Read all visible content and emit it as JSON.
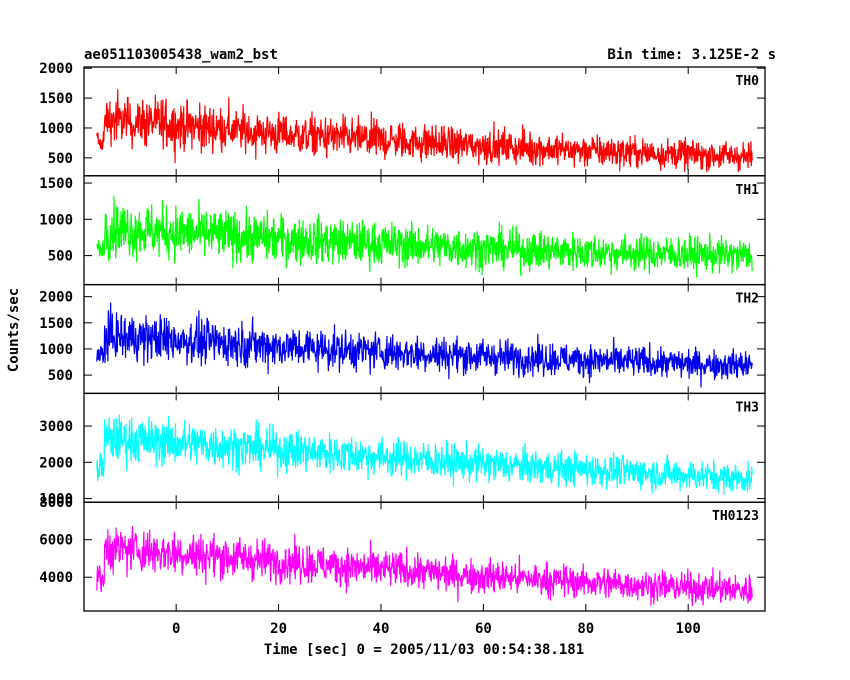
{
  "chart_data": {
    "type": "line",
    "title": "ae051103005438_wam2_bst",
    "subtitle": "Bin time: 3.125E-2 s",
    "xlabel": "Time [sec] 0 = 2005/11/03 00:54:38.181",
    "ylabel": "Counts/sec",
    "xlim": [
      -18,
      115
    ],
    "x_ticks": [
      0,
      20,
      40,
      60,
      80,
      100
    ],
    "x_tick_labels": [
      "0",
      "20",
      "40",
      "60",
      "80",
      "100"
    ],
    "x_data_range": [
      -15.5,
      112.5
    ],
    "panels": [
      {
        "name": "TH0",
        "color": "#ff0000",
        "ylim": [
          200,
          2020
        ],
        "y_ticks": [
          500,
          1000,
          1500,
          2000
        ],
        "y_tick_labels": [
          "500",
          "1000",
          "1500",
          "2000"
        ],
        "trend": [
          [
            -15,
            1150
          ],
          [
            0,
            1050
          ],
          [
            20,
            900
          ],
          [
            40,
            800
          ],
          [
            60,
            700
          ],
          [
            80,
            620
          ],
          [
            100,
            560
          ],
          [
            112,
            520
          ]
        ],
        "spread": [
          [
            -15,
            400
          ],
          [
            0,
            380
          ],
          [
            20,
            330
          ],
          [
            40,
            300
          ],
          [
            60,
            270
          ],
          [
            80,
            250
          ],
          [
            100,
            230
          ],
          [
            112,
            220
          ]
        ]
      },
      {
        "name": "TH1",
        "color": "#00ff00",
        "ylim": [
          100,
          1600
        ],
        "y_ticks": [
          500,
          1000,
          1500
        ],
        "y_tick_labels": [
          "500",
          "1000",
          "1500"
        ],
        "trend": [
          [
            -15,
            880
          ],
          [
            0,
            820
          ],
          [
            20,
            730
          ],
          [
            40,
            660
          ],
          [
            60,
            600
          ],
          [
            80,
            550
          ],
          [
            100,
            520
          ],
          [
            112,
            500
          ]
        ],
        "spread": [
          [
            -15,
            360
          ],
          [
            0,
            340
          ],
          [
            20,
            310
          ],
          [
            40,
            280
          ],
          [
            60,
            260
          ],
          [
            80,
            240
          ],
          [
            100,
            230
          ],
          [
            112,
            220
          ]
        ]
      },
      {
        "name": "TH2",
        "color": "#0000ee",
        "ylim": [
          150,
          2230
        ],
        "y_ticks": [
          500,
          1000,
          1500,
          2000
        ],
        "y_tick_labels": [
          "500",
          "1000",
          "1500",
          "2000"
        ],
        "trend": [
          [
            -15,
            1250
          ],
          [
            0,
            1180
          ],
          [
            20,
            1050
          ],
          [
            40,
            950
          ],
          [
            60,
            860
          ],
          [
            80,
            790
          ],
          [
            100,
            720
          ],
          [
            112,
            690
          ]
        ],
        "spread": [
          [
            -15,
            430
          ],
          [
            0,
            410
          ],
          [
            20,
            370
          ],
          [
            40,
            340
          ],
          [
            60,
            310
          ],
          [
            80,
            290
          ],
          [
            100,
            270
          ],
          [
            112,
            260
          ]
        ]
      },
      {
        "name": "TH3",
        "color": "#00ffff",
        "ylim": [
          900,
          3900
        ],
        "y_ticks": [
          1000,
          2000,
          3000
        ],
        "y_tick_labels": [
          "1000",
          "2000",
          "3000"
        ],
        "trend": [
          [
            -15,
            2650
          ],
          [
            0,
            2550
          ],
          [
            20,
            2350
          ],
          [
            40,
            2150
          ],
          [
            60,
            1950
          ],
          [
            80,
            1800
          ],
          [
            100,
            1650
          ],
          [
            112,
            1550
          ]
        ],
        "spread": [
          [
            -15,
            620
          ],
          [
            0,
            590
          ],
          [
            20,
            540
          ],
          [
            40,
            500
          ],
          [
            60,
            460
          ],
          [
            80,
            430
          ],
          [
            100,
            400
          ],
          [
            112,
            390
          ]
        ]
      },
      {
        "name": "TH0123",
        "color": "#ff00ff",
        "ylim": [
          2200,
          8000
        ],
        "y_ticks": [
          4000,
          6000,
          8000
        ],
        "y_tick_labels": [
          "4000",
          "6000",
          "8000"
        ],
        "trend": [
          [
            -15,
            5600
          ],
          [
            0,
            5300
          ],
          [
            20,
            4850
          ],
          [
            40,
            4450
          ],
          [
            60,
            4050
          ],
          [
            80,
            3750
          ],
          [
            100,
            3450
          ],
          [
            112,
            3300
          ]
        ],
        "spread": [
          [
            -15,
            1150
          ],
          [
            0,
            1100
          ],
          [
            20,
            1000
          ],
          [
            40,
            930
          ],
          [
            60,
            860
          ],
          [
            80,
            800
          ],
          [
            100,
            760
          ],
          [
            112,
            740
          ]
        ]
      }
    ],
    "grid": false
  }
}
